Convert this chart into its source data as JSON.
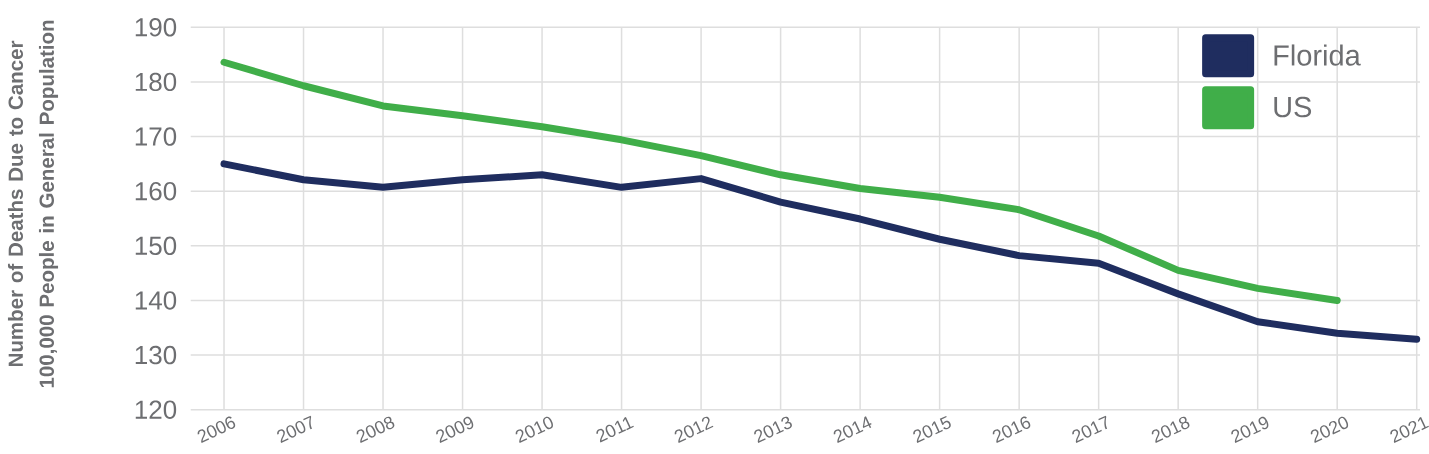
{
  "chart_data": {
    "type": "line",
    "ylabel": "Number of Deaths Due to Cancer 100,000 People in General Population",
    "categories": [
      "2006",
      "2007",
      "2008",
      "2009",
      "2010",
      "2011",
      "2012",
      "2013",
      "2014",
      "2015",
      "2016",
      "2017",
      "2018",
      "2019",
      "2020",
      "2021"
    ],
    "series": [
      {
        "name": "Florida",
        "color": "#1f2d5f",
        "values": [
          165.0,
          162.1,
          160.7,
          162.1,
          163.0,
          160.7,
          162.3,
          158.0,
          154.9,
          151.2,
          148.2,
          146.8,
          141.2,
          136.1,
          134.0,
          132.9
        ]
      },
      {
        "name": "US",
        "color": "#40ae49",
        "values": [
          183.6,
          179.3,
          175.6,
          173.8,
          171.8,
          169.4,
          166.5,
          163.0,
          160.5,
          158.9,
          156.6,
          151.8,
          145.5,
          142.2,
          140.0,
          null
        ]
      }
    ],
    "ylim": [
      120,
      190
    ],
    "yticks": [
      120,
      130,
      140,
      150,
      160,
      170,
      180,
      190
    ],
    "grid": true,
    "legend": "top right",
    "line_style": "solid"
  }
}
